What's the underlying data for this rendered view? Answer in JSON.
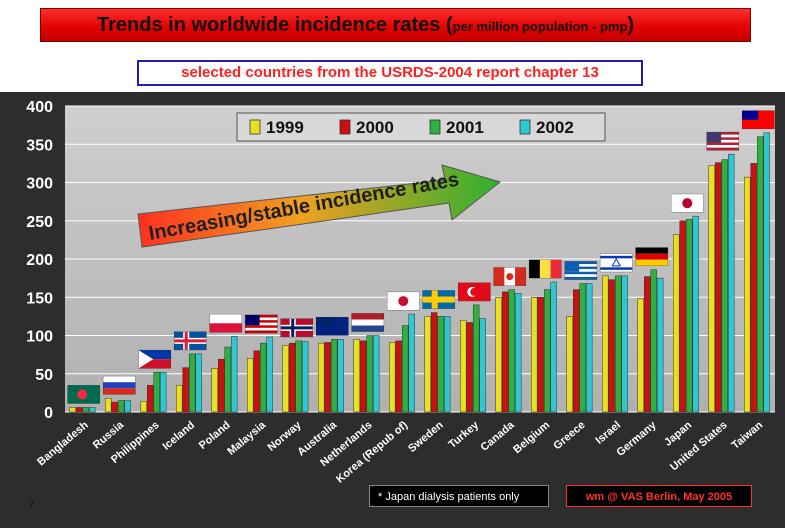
{
  "slide": {
    "title_main": "Trends in worldwide incidence rates (",
    "title_small": "per million population - pmp",
    "title_close": ")",
    "subtitle_prefix": "selected countries from the ",
    "subtitle_source": "USRDS-2004 report chapter 13",
    "footnote": "* Japan dialysis patients only",
    "credit": "wm @ VAS Berlin, May 2005",
    "page_number": "7"
  },
  "colors": {
    "y1999": "#e8e020",
    "y2000": "#cc1010",
    "y2001": "#30b040",
    "y2002": "#30c8d0"
  },
  "chart_data": {
    "type": "bar",
    "title": "Trends in worldwide incidence rates (per million population - pmp)",
    "ylabel": "",
    "xlabel": "",
    "ylim": [
      0,
      400
    ],
    "yticks": [
      0,
      50,
      100,
      150,
      200,
      250,
      300,
      350,
      400
    ],
    "annotation": "Increasing/stable incidence rates",
    "categories": [
      "Bangladesh",
      "Russia",
      "Philippines",
      "Iceland",
      "Poland",
      "Malaysia",
      "Norway",
      "Australia",
      "Netherlands",
      "Korea (Repub of)",
      "Sweden",
      "Turkey",
      "Canada",
      "Belgium",
      "Greece",
      "Israel",
      "Germany",
      "Japan",
      "United States",
      "Taiwan"
    ],
    "series": [
      {
        "name": "1999",
        "values": [
          6,
          18,
          14,
          35,
          57,
          70,
          87,
          90,
          95,
          91,
          125,
          120,
          150,
          150,
          125,
          178,
          148,
          232,
          322,
          307
        ]
      },
      {
        "name": "2000",
        "values": [
          6,
          13,
          35,
          58,
          69,
          80,
          90,
          91,
          93,
          93,
          130,
          117,
          157,
          150,
          160,
          173,
          177,
          250,
          326,
          325
        ]
      },
      {
        "name": "2001",
        "values": [
          6,
          15,
          52,
          76,
          85,
          90,
          93,
          95,
          100,
          113,
          125,
          140,
          160,
          160,
          168,
          178,
          186,
          252,
          330,
          360
        ]
      },
      {
        "name": "2002",
        "values": [
          6,
          15,
          52,
          76,
          99,
          98,
          92,
          95,
          100,
          128,
          125,
          122,
          155,
          170,
          168,
          178,
          175,
          256,
          337,
          365
        ]
      }
    ],
    "legend": {
      "position": "top-center",
      "entries": [
        "1999",
        "2000",
        "2001",
        "2002"
      ]
    }
  },
  "flags": [
    "bangladesh-flag-icon",
    "russia-flag-icon",
    "philippines-flag-icon",
    "iceland-flag-icon",
    "poland-flag-icon",
    "malaysia-flag-icon",
    "norway-flag-icon",
    "australia-flag-icon",
    "netherlands-flag-icon",
    "korea-flag-icon",
    "sweden-flag-icon",
    "turkey-flag-icon",
    "canada-flag-icon",
    "belgium-flag-icon",
    "greece-flag-icon",
    "israel-flag-icon",
    "germany-flag-icon",
    "japan-flag-icon",
    "united-states-flag-icon",
    "taiwan-flag-icon"
  ]
}
